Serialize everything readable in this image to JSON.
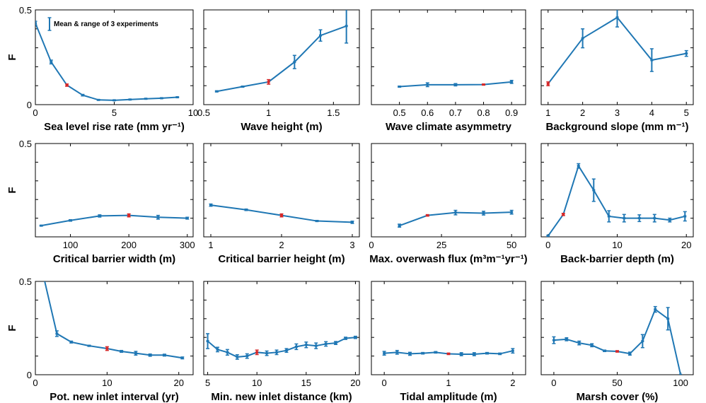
{
  "colors": {
    "line": "#1f77b4",
    "highlight": "#d62728",
    "axis": "#000000"
  },
  "legend": {
    "label": "Mean & range of 3 experiments"
  },
  "y_axis_label": "F",
  "chart_data": [
    {
      "type": "line",
      "xlabel": "Sea level rise rate (mm yr⁻¹)",
      "xlim": [
        0,
        10
      ],
      "ylim": [
        0,
        0.5
      ],
      "xticks": [
        0,
        5,
        10
      ],
      "yticks": [
        0,
        0.5
      ],
      "ytick_labels": [
        "0",
        "0.5"
      ],
      "x": [
        0,
        1,
        2,
        3,
        4,
        5,
        6,
        7,
        8,
        9
      ],
      "y": [
        0.43,
        0.225,
        0.103,
        0.05,
        0.025,
        0.023,
        0.027,
        0.031,
        0.034,
        0.039
      ],
      "err": [
        0.01,
        0.01,
        0.006,
        0.004,
        0.002,
        0.002,
        0.002,
        0.002,
        0.002,
        0.002
      ],
      "highlight_index": 2
    },
    {
      "type": "line",
      "xlabel": "Wave height (m)",
      "xlim": [
        0.5,
        1.7
      ],
      "ylim": [
        0,
        0.5
      ],
      "xticks": [
        0.5,
        1,
        1.5
      ],
      "yticks": [],
      "x": [
        0.6,
        0.8,
        1.0,
        1.2,
        1.4,
        1.6
      ],
      "y": [
        0.07,
        0.095,
        0.12,
        0.225,
        0.365,
        0.415
      ],
      "err": [
        0.003,
        0.003,
        0.012,
        0.035,
        0.03,
        0.09
      ],
      "highlight_index": 2
    },
    {
      "type": "line",
      "xlabel": "Wave climate asymmetry",
      "xlim": [
        0.4,
        0.95
      ],
      "ylim": [
        0,
        0.5
      ],
      "xticks": [
        0.5,
        0.6,
        0.7,
        0.8,
        0.9
      ],
      "yticks": [],
      "x": [
        0.5,
        0.6,
        0.7,
        0.8,
        0.9
      ],
      "y": [
        0.095,
        0.105,
        0.105,
        0.106,
        0.12
      ],
      "err": [
        0.003,
        0.01,
        0.006,
        0.003,
        0.008
      ],
      "highlight_index": 3
    },
    {
      "type": "line",
      "xlabel": "Background slope (mm m⁻¹)",
      "xlim": [
        0.8,
        5.2
      ],
      "ylim": [
        0,
        0.5
      ],
      "xticks": [
        1,
        2,
        3,
        4,
        5
      ],
      "yticks": [],
      "x": [
        1,
        2,
        3,
        4,
        5
      ],
      "y": [
        0.11,
        0.35,
        0.46,
        0.235,
        0.27
      ],
      "err": [
        0.01,
        0.05,
        0.05,
        0.06,
        0.015
      ],
      "highlight_index": 0
    },
    {
      "type": "line",
      "xlabel": "Critical barrier width (m)",
      "xlim": [
        40,
        310
      ],
      "ylim": [
        0,
        0.5
      ],
      "xticks": [
        100,
        200,
        300
      ],
      "yticks": [
        0,
        0.5
      ],
      "ytick_labels": [
        "",
        "0.5"
      ],
      "x": [
        50,
        100,
        150,
        200,
        250,
        300
      ],
      "y": [
        0.06,
        0.088,
        0.112,
        0.115,
        0.105,
        0.1
      ],
      "err": [
        0.002,
        0.004,
        0.006,
        0.008,
        0.01,
        0.005
      ],
      "highlight_index": 3
    },
    {
      "type": "line",
      "xlabel": "Critical barrier height (m)",
      "xlim": [
        0.9,
        3.1
      ],
      "ylim": [
        0,
        0.5
      ],
      "xticks": [
        1,
        2,
        3
      ],
      "yticks": [],
      "x": [
        1.0,
        1.5,
        2.0,
        2.5,
        3.0
      ],
      "y": [
        0.17,
        0.145,
        0.115,
        0.085,
        0.078
      ],
      "err": [
        0.006,
        0.004,
        0.008,
        0.003,
        0.006
      ],
      "highlight_index": 2
    },
    {
      "type": "line",
      "xlabel": "Max. overwash flux (m³m⁻¹yr⁻¹)",
      "xlim": [
        0,
        55
      ],
      "ylim": [
        0,
        0.5
      ],
      "xticks": [
        0,
        25,
        50
      ],
      "yticks": [],
      "x": [
        10,
        20,
        30,
        40,
        50
      ],
      "y": [
        0.06,
        0.115,
        0.13,
        0.127,
        0.132
      ],
      "err": [
        0.008,
        0.004,
        0.012,
        0.01,
        0.01
      ],
      "highlight_index": 1
    },
    {
      "type": "line",
      "xlabel": "Back-barrier depth (m)",
      "xlim": [
        -1,
        21
      ],
      "ylim": [
        0,
        0.5
      ],
      "xticks": [
        0,
        10,
        20
      ],
      "yticks": [],
      "x": [
        0,
        2.2,
        4.4,
        6.6,
        8.8,
        11,
        13.2,
        15.4,
        17.6,
        19.8
      ],
      "y": [
        0.005,
        0.12,
        0.38,
        0.25,
        0.11,
        0.1,
        0.1,
        0.1,
        0.09,
        0.11
      ],
      "err": [
        0.004,
        0.006,
        0.012,
        0.06,
        0.03,
        0.02,
        0.018,
        0.02,
        0.01,
        0.025
      ],
      "highlight_index": 1
    },
    {
      "type": "line",
      "xlabel": "Pot. new inlet interval (yr)",
      "xlim": [
        0,
        22
      ],
      "ylim": [
        0,
        0.5
      ],
      "xticks": [
        0,
        10,
        20
      ],
      "yticks": [
        0,
        0.5
      ],
      "ytick_labels": [
        "0",
        "0.5"
      ],
      "x": [
        1,
        3,
        5,
        7.5,
        10,
        12,
        14,
        16,
        18,
        20.5
      ],
      "y": [
        0.55,
        0.22,
        0.175,
        0.155,
        0.14,
        0.125,
        0.115,
        0.105,
        0.105,
        0.09
      ],
      "err": [
        0.0,
        0.015,
        0.005,
        0.003,
        0.01,
        0.005,
        0.01,
        0.006,
        0.005,
        0.005
      ],
      "highlight_index": 4
    },
    {
      "type": "line",
      "xlabel": "Min. new inlet distance (km)",
      "xlim": [
        4.6,
        20.4
      ],
      "ylim": [
        0,
        0.5
      ],
      "xticks": [
        5,
        10,
        15,
        20
      ],
      "yticks": [],
      "x": [
        5,
        6,
        7,
        8,
        9,
        10,
        11,
        12,
        13,
        14,
        15,
        16,
        17,
        18,
        19,
        20
      ],
      "y": [
        0.18,
        0.135,
        0.12,
        0.095,
        0.1,
        0.12,
        0.115,
        0.12,
        0.13,
        0.15,
        0.16,
        0.155,
        0.165,
        0.17,
        0.195,
        0.2
      ],
      "err": [
        0.04,
        0.012,
        0.015,
        0.012,
        0.012,
        0.012,
        0.012,
        0.012,
        0.01,
        0.015,
        0.015,
        0.015,
        0.012,
        0.008,
        0.006,
        0.006
      ],
      "highlight_index": 5
    },
    {
      "type": "line",
      "xlabel": "Tidal amplitude (m)",
      "xlim": [
        -0.2,
        2.2
      ],
      "ylim": [
        0,
        0.5
      ],
      "xticks": [
        0,
        1,
        2
      ],
      "yticks": [],
      "x": [
        0,
        0.2,
        0.4,
        0.6,
        0.8,
        1.0,
        1.2,
        1.4,
        1.6,
        1.8,
        2.0
      ],
      "y": [
        0.115,
        0.12,
        0.112,
        0.115,
        0.12,
        0.112,
        0.11,
        0.11,
        0.115,
        0.112,
        0.128
      ],
      "err": [
        0.01,
        0.01,
        0.008,
        0.004,
        0.004,
        0.004,
        0.008,
        0.008,
        0.004,
        0.004,
        0.012
      ],
      "highlight_index": 5
    },
    {
      "type": "line",
      "xlabel": "Marsh cover (%)",
      "xlim": [
        -10,
        110
      ],
      "ylim": [
        0,
        0.5
      ],
      "xticks": [
        0,
        50,
        100
      ],
      "yticks": [],
      "x": [
        0,
        10,
        20,
        30,
        40,
        50,
        60,
        70,
        80,
        90,
        100
      ],
      "y": [
        0.185,
        0.19,
        0.17,
        0.158,
        0.128,
        0.125,
        0.113,
        0.18,
        0.35,
        0.3,
        0.0
      ],
      "err": [
        0.018,
        0.008,
        0.01,
        0.008,
        0.004,
        0.004,
        0.008,
        0.035,
        0.015,
        0.06,
        0.0
      ],
      "highlight_index": 5
    }
  ]
}
